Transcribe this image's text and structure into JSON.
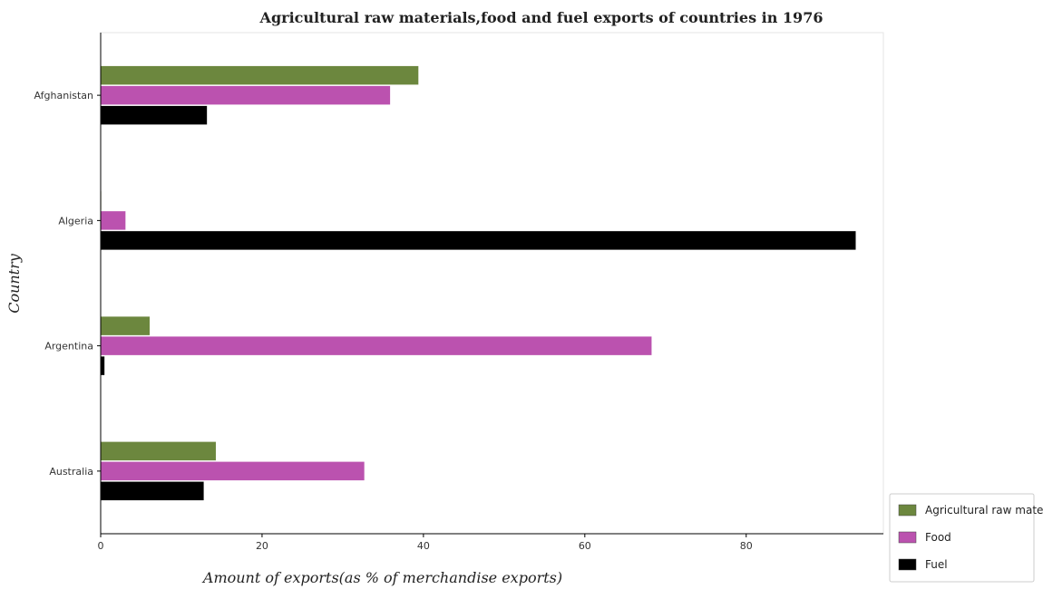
{
  "chart_data": {
    "type": "bar",
    "orientation": "horizontal",
    "title": "Agricultural raw materials,food and fuel exports of countries in 1976",
    "xlabel": "Amount of exports(as % of merchandise exports)",
    "ylabel": "Country",
    "xlim": [
      0,
      97
    ],
    "xticks": [
      0,
      20,
      40,
      60,
      80
    ],
    "categories": [
      "Afghanistan",
      "Algeria",
      "Argentina",
      "Australia"
    ],
    "series": [
      {
        "name": "Agricultural raw materials",
        "color": "#5c7a29",
        "values": [
          39.4,
          0.1,
          6.1,
          14.3
        ]
      },
      {
        "name": "Food",
        "color": "#b43fa6",
        "values": [
          35.9,
          3.1,
          68.3,
          32.7
        ]
      },
      {
        "name": "Fuel",
        "color": "#000000",
        "values": [
          13.2,
          93.6,
          0.5,
          12.8
        ]
      }
    ],
    "grid": false,
    "legend_position": "bottom-right"
  }
}
